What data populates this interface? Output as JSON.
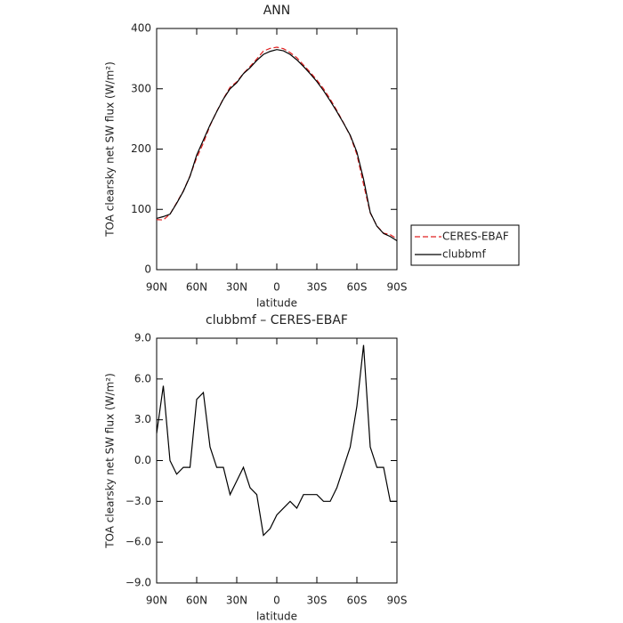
{
  "chart_data": [
    {
      "type": "line",
      "title": "ANN",
      "xlabel": "latitude",
      "ylabel": "TOA clearsky net SW flux (W/m²)",
      "x": [
        90,
        85,
        80,
        75,
        70,
        65,
        60,
        55,
        50,
        45,
        40,
        35,
        30,
        25,
        20,
        15,
        10,
        5,
        0,
        -5,
        -10,
        -15,
        -20,
        -25,
        -30,
        -35,
        -40,
        -45,
        -50,
        -55,
        -60,
        -65,
        -70,
        -75,
        -80,
        -85,
        -90
      ],
      "series": [
        {
          "name": "CERES-EBAF",
          "color": "#e02020",
          "dash": true,
          "values": [
            83,
            82.5,
            92,
            111,
            130.5,
            155.5,
            185.5,
            210,
            239,
            262.5,
            283.5,
            302.5,
            311.5,
            325.5,
            337,
            349.5,
            362.5,
            367,
            369,
            366.5,
            360,
            351.5,
            339.5,
            327.5,
            314.5,
            300,
            283,
            264,
            243.5,
            222,
            191,
            141.5,
            94,
            72.5,
            60.5,
            58,
            51
          ]
        },
        {
          "name": "clubbmf",
          "color": "#000000",
          "dash": false,
          "values": [
            85,
            88,
            92,
            110,
            130,
            155,
            190,
            215,
            240,
            262,
            283,
            300,
            310,
            325,
            335,
            347,
            357,
            362,
            365,
            363,
            357,
            348,
            337,
            325,
            312,
            297,
            280,
            262,
            243,
            223,
            195,
            150,
            95,
            72,
            60,
            55,
            48
          ]
        }
      ],
      "xlim": [
        90,
        -90
      ],
      "xticks": [
        {
          "value": 90,
          "label": "90N"
        },
        {
          "value": 60,
          "label": "60N"
        },
        {
          "value": 30,
          "label": "30N"
        },
        0,
        {
          "value": -30,
          "label": "30S"
        },
        {
          "value": -60,
          "label": "60S"
        },
        {
          "value": -90,
          "label": "90S"
        }
      ],
      "ylim": [
        0,
        400
      ],
      "yticks": [
        0,
        100,
        200,
        300,
        400
      ],
      "legend": "outside-right"
    },
    {
      "type": "line",
      "title": "clubbmf – CERES-EBAF",
      "xlabel": "latitude",
      "ylabel": "TOA clearsky net SW flux (W/m²)",
      "x": [
        90,
        85,
        80,
        75,
        70,
        65,
        60,
        55,
        50,
        45,
        40,
        35,
        30,
        25,
        20,
        15,
        10,
        5,
        0,
        -5,
        -10,
        -15,
        -20,
        -25,
        -30,
        -35,
        -40,
        -45,
        -50,
        -55,
        -60,
        -65,
        -70,
        -75,
        -80,
        -85,
        -90
      ],
      "values": [
        2,
        5.5,
        0,
        -1,
        -0.5,
        -0.5,
        4.5,
        5,
        1,
        -0.5,
        -0.5,
        -2.5,
        -1.5,
        -0.5,
        -2,
        -2.5,
        -5.5,
        -5,
        -4,
        -3.5,
        -3,
        -3.5,
        -2.5,
        -2.5,
        -2.5,
        -3,
        -3,
        -2,
        -0.5,
        1,
        4,
        8.5,
        1,
        -0.5,
        -0.5,
        -3,
        -3
      ],
      "color": "#000000",
      "xlim": [
        90,
        -90
      ],
      "xticks": [
        {
          "value": 90,
          "label": "90N"
        },
        {
          "value": 60,
          "label": "60N"
        },
        {
          "value": 30,
          "label": "30N"
        },
        0,
        {
          "value": -30,
          "label": "30S"
        },
        {
          "value": -60,
          "label": "60S"
        },
        {
          "value": -90,
          "label": "90S"
        }
      ],
      "ylim": [
        -9,
        9
      ],
      "yticks": [
        {
          "value": -9,
          "label": "−9.0"
        },
        {
          "value": -6,
          "label": "−6.0"
        },
        {
          "value": -3,
          "label": "−3.0"
        },
        {
          "value": 0,
          "label": "0.0"
        },
        {
          "value": 3,
          "label": "3.0"
        },
        {
          "value": 6,
          "label": "6.0"
        },
        {
          "value": 9,
          "label": "9.0"
        }
      ]
    }
  ]
}
